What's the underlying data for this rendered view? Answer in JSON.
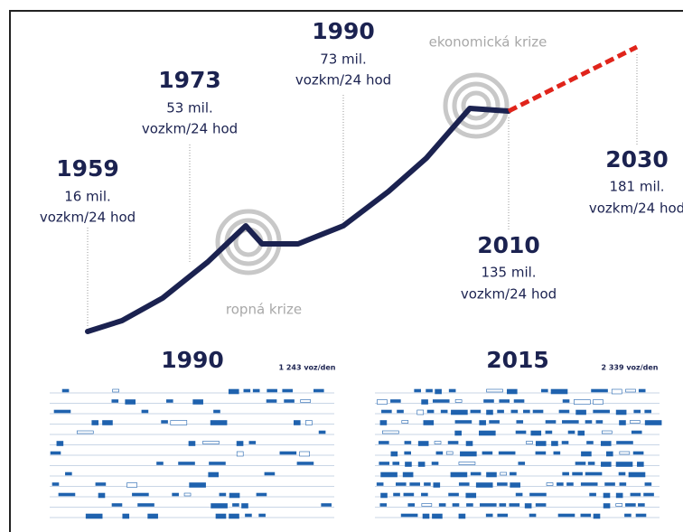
{
  "milestones": [
    {
      "year": "1959",
      "value": "16 mil.",
      "unit": "vozkm/24 hod"
    },
    {
      "year": "1973",
      "value": "53 mil.",
      "unit": "vozkm/24 hod"
    },
    {
      "year": "1990",
      "value": "73 mil.",
      "unit": "vozkm/24 hod"
    },
    {
      "year": "2010",
      "value": "135 mil.",
      "unit": "vozkm/24 hod"
    },
    {
      "year": "2030",
      "value": "181 mil.",
      "unit": "vozkm/24 hod"
    }
  ],
  "annotations": [
    "ropná krize",
    "ekonomická krize"
  ],
  "panels": [
    {
      "title": "1990",
      "note": "1 243 voz/den"
    },
    {
      "title": "2015",
      "note": "2 339 voz/den"
    }
  ]
}
